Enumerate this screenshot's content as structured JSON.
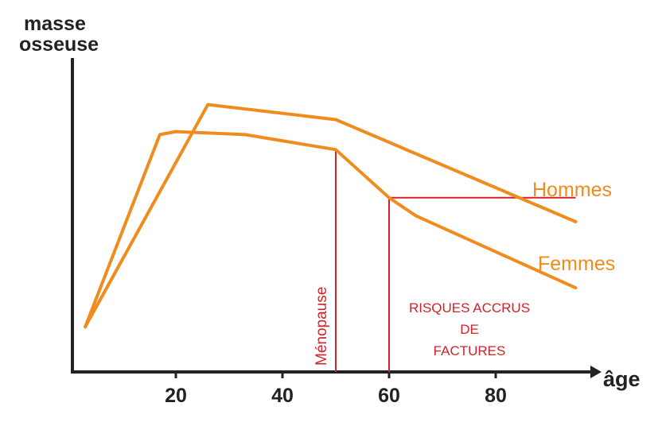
{
  "chart_data": {
    "type": "line",
    "ylabel": [
      "masse",
      "osseuse"
    ],
    "xlabel": "âge",
    "xlim": [
      0,
      95
    ],
    "ylim": [
      0,
      100
    ],
    "x_ticks": [
      20,
      40,
      60,
      80
    ],
    "x_tick_labels": [
      "20",
      "40",
      "60",
      "80"
    ],
    "yticks_shown": false,
    "grid": false,
    "colors": {
      "series": "#f08c1e",
      "annotation": "#d2232a",
      "axis": "#222222"
    },
    "series": [
      {
        "name": "Hommes",
        "points": [
          [
            3,
            15
          ],
          [
            26,
            89
          ],
          [
            50,
            84
          ],
          [
            95,
            50
          ]
        ]
      },
      {
        "name": "Femmes",
        "points": [
          [
            3,
            15
          ],
          [
            17,
            79
          ],
          [
            20,
            80
          ],
          [
            33,
            79
          ],
          [
            50,
            74
          ],
          [
            60,
            58
          ],
          [
            65,
            52
          ],
          [
            95,
            28
          ]
        ]
      }
    ],
    "annotations": {
      "menopause": {
        "x": 50,
        "text": "Ménopause"
      },
      "risk": {
        "x": 60,
        "y_threshold": 58,
        "x_end": 95,
        "lines": [
          "RISQUES ACCRUS",
          "DE",
          "FACTURES"
        ]
      }
    }
  }
}
